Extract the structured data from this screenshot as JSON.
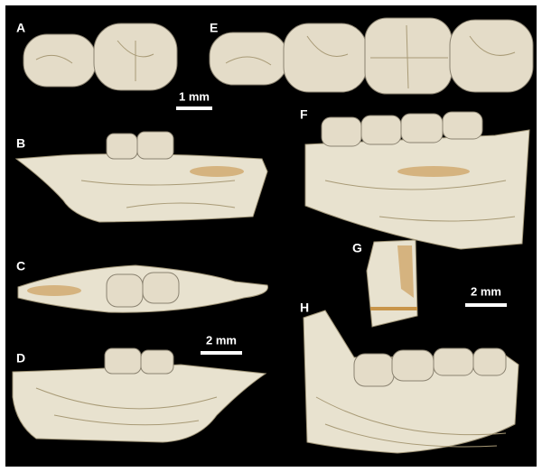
{
  "panels": [
    {
      "label": "A"
    },
    {
      "label": "B"
    },
    {
      "label": "C"
    },
    {
      "label": "D"
    },
    {
      "label": "E"
    },
    {
      "label": "F"
    },
    {
      "label": "G"
    },
    {
      "label": "H"
    }
  ],
  "scale_bars": [
    {
      "label": "1 mm"
    },
    {
      "label": "2 mm"
    },
    {
      "label": "2 mm"
    }
  ]
}
